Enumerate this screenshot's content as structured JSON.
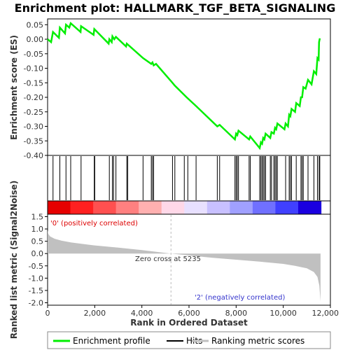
{
  "chart_data": {
    "type": "line",
    "title": "Enrichment plot: HALLMARK_TGF_BETA_SIGNALING",
    "top_panel": {
      "ylabel": "Enrichment score (ES)",
      "ylim": [
        -0.4,
        0.07
      ],
      "yticks": [
        "0.05",
        "0.00",
        "-0.05",
        "-0.10",
        "-0.15",
        "-0.20",
        "-0.25",
        "-0.30",
        "-0.35",
        "-0.40"
      ],
      "ytick_values": [
        0.05,
        0.0,
        -0.05,
        -0.1,
        -0.15,
        -0.2,
        -0.25,
        -0.3,
        -0.35,
        -0.4
      ],
      "series_color": "#00ee00",
      "es_profile": [
        [
          0,
          0
        ],
        [
          150,
          -0.01
        ],
        [
          230,
          0.025
        ],
        [
          480,
          0.005
        ],
        [
          520,
          0.04
        ],
        [
          740,
          0.02
        ],
        [
          780,
          0.05
        ],
        [
          920,
          0.04
        ],
        [
          980,
          0.055
        ],
        [
          1400,
          0.025
        ],
        [
          1420,
          0.045
        ],
        [
          1950,
          0.015
        ],
        [
          1980,
          0.035
        ],
        [
          2590,
          -0.015
        ],
        [
          2620,
          0.0
        ],
        [
          2720,
          -0.01
        ],
        [
          2750,
          0.01
        ],
        [
          2830,
          0.0
        ],
        [
          2900,
          0.008
        ],
        [
          3330,
          -0.025
        ],
        [
          3360,
          -0.015
        ],
        [
          4050,
          -0.065
        ],
        [
          4400,
          -0.085
        ],
        [
          4450,
          -0.08
        ],
        [
          4500,
          -0.09
        ],
        [
          4600,
          -0.085
        ],
        [
          5300,
          -0.15
        ],
        [
          5400,
          -0.16
        ],
        [
          5900,
          -0.2
        ],
        [
          6300,
          -0.23
        ],
        [
          7200,
          -0.3
        ],
        [
          7300,
          -0.295
        ],
        [
          7950,
          -0.345
        ],
        [
          8000,
          -0.325
        ],
        [
          8050,
          -0.33
        ],
        [
          8100,
          -0.315
        ],
        [
          8550,
          -0.345
        ],
        [
          8600,
          -0.335
        ],
        [
          9000,
          -0.375
        ],
        [
          9050,
          -0.355
        ],
        [
          9100,
          -0.36
        ],
        [
          9150,
          -0.34
        ],
        [
          9200,
          -0.345
        ],
        [
          9250,
          -0.325
        ],
        [
          9450,
          -0.34
        ],
        [
          9500,
          -0.32
        ],
        [
          9600,
          -0.325
        ],
        [
          9650,
          -0.305
        ],
        [
          9700,
          -0.31
        ],
        [
          9750,
          -0.29
        ],
        [
          10050,
          -0.31
        ],
        [
          10100,
          -0.29
        ],
        [
          10200,
          -0.3
        ],
        [
          10250,
          -0.26
        ],
        [
          10300,
          -0.265
        ],
        [
          10350,
          -0.24
        ],
        [
          10500,
          -0.25
        ],
        [
          10550,
          -0.22
        ],
        [
          10700,
          -0.23
        ],
        [
          10750,
          -0.2
        ],
        [
          10800,
          -0.2
        ],
        [
          10850,
          -0.165
        ],
        [
          10950,
          -0.17
        ],
        [
          11050,
          -0.14
        ],
        [
          11200,
          -0.155
        ],
        [
          11300,
          -0.11
        ],
        [
          11400,
          -0.12
        ],
        [
          11450,
          -0.065
        ],
        [
          11500,
          -0.07
        ],
        [
          11520,
          -0.01
        ],
        [
          11550,
          0.003
        ]
      ]
    },
    "hits_panel": {
      "hit_ranks": [
        230,
        520,
        780,
        980,
        1420,
        1980,
        2000,
        2620,
        2750,
        2800,
        2900,
        3360,
        3400,
        4050,
        4400,
        4450,
        4500,
        5300,
        5400,
        5800,
        5950,
        6300,
        7200,
        7300,
        7950,
        8000,
        8050,
        8100,
        8550,
        8600,
        9000,
        9050,
        9100,
        9150,
        9200,
        9250,
        9450,
        9500,
        9600,
        9650,
        9700,
        9750,
        10100,
        10250,
        10300,
        10350,
        10550,
        10750,
        10800,
        10850,
        11050,
        11300,
        11450,
        11520,
        11550
      ],
      "band_colors": [
        "#e60000",
        "#ff2020",
        "#ff5050",
        "#ff8080",
        "#ffb0b0",
        "#ffd8e8",
        "#e8e0ff",
        "#c8c0ff",
        "#a0a0ff",
        "#7070ff",
        "#4040ff",
        "#1a00e0"
      ]
    },
    "metric_panel": {
      "ylabel": "Ranked list metric (Signal2Noise)",
      "ylim": [
        -2.1,
        1.6
      ],
      "yticks": [
        "1.5",
        "1.0",
        "0.5",
        "0.0",
        "-0.5",
        "-1.0",
        "-1.5",
        "-2.0"
      ],
      "ytick_values": [
        1.5,
        1.0,
        0.5,
        0.0,
        -0.5,
        -1.0,
        -1.5,
        -2.0
      ],
      "zero_cross_label": "Zero cross at 5235",
      "zero_cross": 5235,
      "pos_label": "'0' (positively correlated)",
      "neg_label": "'2' (negatively correlated)",
      "metric_curve": [
        [
          0,
          0.95
        ],
        [
          30,
          0.8
        ],
        [
          100,
          0.7
        ],
        [
          300,
          0.6
        ],
        [
          600,
          0.52
        ],
        [
          1000,
          0.45
        ],
        [
          2000,
          0.33
        ],
        [
          3000,
          0.24
        ],
        [
          4000,
          0.14
        ],
        [
          5235,
          0.0
        ],
        [
          6000,
          -0.08
        ],
        [
          7000,
          -0.17
        ],
        [
          8000,
          -0.25
        ],
        [
          9000,
          -0.33
        ],
        [
          10000,
          -0.42
        ],
        [
          10500,
          -0.5
        ],
        [
          11000,
          -0.6
        ],
        [
          11300,
          -0.75
        ],
        [
          11450,
          -0.95
        ],
        [
          11530,
          -1.3
        ],
        [
          11580,
          -1.95
        ]
      ]
    },
    "xlabel": "Rank in Ordered Dataset",
    "xlim": [
      0,
      12000
    ],
    "xticks": [
      "0",
      "2,000",
      "4,000",
      "6,000",
      "8,000",
      "10,000",
      "12,000"
    ],
    "xtick_values": [
      0,
      2000,
      4000,
      6000,
      8000,
      10000,
      12000
    ],
    "n_genes": 11600,
    "legend": {
      "placement": "bottom",
      "items": [
        {
          "label": "Enrichment profile",
          "color": "#00ee00"
        },
        {
          "label": "Hits",
          "color": "#000000"
        },
        {
          "label": "Ranking metric scores",
          "color": "#c0c0c0"
        }
      ]
    }
  }
}
